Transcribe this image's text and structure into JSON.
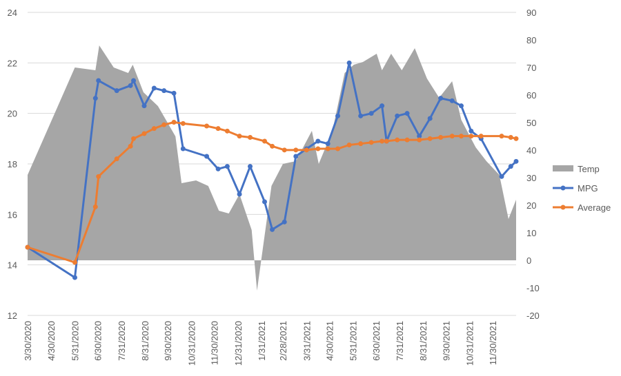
{
  "chart_data": {
    "type": "line",
    "title": "",
    "xlabel": "",
    "ylabel": "",
    "y2label": "",
    "x_tick_labels": [
      "3/30/2020",
      "4/30/2020",
      "5/31/2020",
      "6/30/2020",
      "7/31/2020",
      "8/31/2020",
      "9/30/2020",
      "10/31/2020",
      "11/30/2020",
      "12/31/2020",
      "1/31/2021",
      "2/28/2021",
      "3/31/2021",
      "4/30/2021",
      "5/31/2021",
      "6/30/2021",
      "7/31/2021",
      "8/31/2021",
      "9/30/2021",
      "10/31/2021",
      "11/30/2021"
    ],
    "xlim": [
      "2020-03-30",
      "2021-12-31"
    ],
    "ylim": [
      12,
      24
    ],
    "y_ticks": [
      12,
      14,
      16,
      18,
      20,
      22,
      24
    ],
    "y2lim": [
      -20,
      90
    ],
    "y2_ticks": [
      -20,
      -10,
      0,
      10,
      20,
      30,
      40,
      50,
      60,
      70,
      80,
      90
    ],
    "legend_position": "right",
    "grid": true,
    "series": [
      {
        "name": "Temp",
        "kind": "area",
        "axis": "secondary",
        "color": "#a6a6a6",
        "points": [
          [
            "2020-03-30",
            31
          ],
          [
            "2020-05-31",
            70
          ],
          [
            "2020-06-27",
            69
          ],
          [
            "2020-07-02",
            78
          ],
          [
            "2020-07-21",
            70
          ],
          [
            "2020-08-09",
            68
          ],
          [
            "2020-08-15",
            71
          ],
          [
            "2020-08-29",
            61
          ],
          [
            "2020-09-17",
            56
          ],
          [
            "2020-10-10",
            45
          ],
          [
            "2020-10-18",
            28
          ],
          [
            "2020-11-06",
            29
          ],
          [
            "2020-11-22",
            27
          ],
          [
            "2020-12-06",
            18
          ],
          [
            "2020-12-19",
            17
          ],
          [
            "2021-01-02",
            24
          ],
          [
            "2021-01-18",
            11
          ],
          [
            "2021-01-25",
            -11
          ],
          [
            "2021-02-13",
            27
          ],
          [
            "2021-02-28",
            35
          ],
          [
            "2021-03-17",
            36
          ],
          [
            "2021-04-07",
            47
          ],
          [
            "2021-04-16",
            35
          ],
          [
            "2021-05-04",
            47
          ],
          [
            "2021-05-20",
            68
          ],
          [
            "2021-06-01",
            71
          ],
          [
            "2021-06-13",
            72
          ],
          [
            "2021-07-01",
            75
          ],
          [
            "2021-07-08",
            69
          ],
          [
            "2021-07-20",
            75
          ],
          [
            "2021-08-03",
            69
          ],
          [
            "2021-08-20",
            77
          ],
          [
            "2021-09-05",
            66
          ],
          [
            "2021-09-21",
            59
          ],
          [
            "2021-10-08",
            65
          ],
          [
            "2021-10-20",
            51
          ],
          [
            "2021-11-08",
            41
          ],
          [
            "2021-11-22",
            36
          ],
          [
            "2021-12-09",
            31
          ],
          [
            "2021-12-21",
            15
          ],
          [
            "2021-12-31",
            22
          ]
        ]
      },
      {
        "name": "MPG",
        "kind": "line",
        "axis": "primary",
        "color": "#4472c4",
        "points": [
          [
            "2020-03-30",
            14.7
          ],
          [
            "2020-05-31",
            13.5
          ],
          [
            "2020-06-27",
            20.6
          ],
          [
            "2020-07-01",
            21.3
          ],
          [
            "2020-07-25",
            20.9
          ],
          [
            "2020-08-12",
            21.1
          ],
          [
            "2020-08-16",
            21.3
          ],
          [
            "2020-08-30",
            20.3
          ],
          [
            "2020-09-12",
            21.0
          ],
          [
            "2020-09-25",
            20.9
          ],
          [
            "2020-10-08",
            20.8
          ],
          [
            "2020-10-20",
            18.6
          ],
          [
            "2020-11-20",
            18.3
          ],
          [
            "2020-12-05",
            17.8
          ],
          [
            "2020-12-17",
            17.9
          ],
          [
            "2021-01-02",
            16.8
          ],
          [
            "2021-01-16",
            17.9
          ],
          [
            "2021-02-04",
            16.5
          ],
          [
            "2021-02-14",
            15.4
          ],
          [
            "2021-03-02",
            15.7
          ],
          [
            "2021-03-17",
            18.3
          ],
          [
            "2021-03-31",
            18.6
          ],
          [
            "2021-04-15",
            18.9
          ],
          [
            "2021-04-28",
            18.8
          ],
          [
            "2021-05-11",
            19.9
          ],
          [
            "2021-05-26",
            22.0
          ],
          [
            "2021-06-10",
            19.9
          ],
          [
            "2021-06-24",
            20.0
          ],
          [
            "2021-07-08",
            20.3
          ],
          [
            "2021-07-14",
            18.9
          ],
          [
            "2021-07-28",
            19.9
          ],
          [
            "2021-08-10",
            20.0
          ],
          [
            "2021-08-26",
            19.1
          ],
          [
            "2021-09-09",
            19.8
          ],
          [
            "2021-09-23",
            20.6
          ],
          [
            "2021-10-08",
            20.5
          ],
          [
            "2021-10-20",
            20.3
          ],
          [
            "2021-11-02",
            19.3
          ],
          [
            "2021-11-15",
            19.0
          ],
          [
            "2021-12-12",
            17.5
          ],
          [
            "2021-12-24",
            17.9
          ],
          [
            "2021-12-31",
            18.1
          ]
        ]
      },
      {
        "name": "Average",
        "kind": "line",
        "axis": "primary",
        "color": "#ed7d31",
        "points": [
          [
            "2020-03-30",
            14.7
          ],
          [
            "2020-05-31",
            14.1
          ],
          [
            "2020-06-27",
            16.3
          ],
          [
            "2020-07-01",
            17.5
          ],
          [
            "2020-07-25",
            18.2
          ],
          [
            "2020-08-12",
            18.7
          ],
          [
            "2020-08-16",
            19.0
          ],
          [
            "2020-08-30",
            19.2
          ],
          [
            "2020-09-12",
            19.4
          ],
          [
            "2020-09-25",
            19.55
          ],
          [
            "2020-10-08",
            19.65
          ],
          [
            "2020-10-20",
            19.6
          ],
          [
            "2020-11-20",
            19.5
          ],
          [
            "2020-12-05",
            19.4
          ],
          [
            "2020-12-17",
            19.3
          ],
          [
            "2021-01-02",
            19.1
          ],
          [
            "2021-01-16",
            19.05
          ],
          [
            "2021-02-04",
            18.9
          ],
          [
            "2021-02-14",
            18.7
          ],
          [
            "2021-03-02",
            18.55
          ],
          [
            "2021-03-17",
            18.55
          ],
          [
            "2021-03-31",
            18.55
          ],
          [
            "2021-04-15",
            18.6
          ],
          [
            "2021-04-28",
            18.6
          ],
          [
            "2021-05-11",
            18.6
          ],
          [
            "2021-05-26",
            18.75
          ],
          [
            "2021-06-10",
            18.8
          ],
          [
            "2021-06-24",
            18.85
          ],
          [
            "2021-07-08",
            18.9
          ],
          [
            "2021-07-14",
            18.9
          ],
          [
            "2021-07-28",
            18.95
          ],
          [
            "2021-08-10",
            18.95
          ],
          [
            "2021-08-26",
            18.95
          ],
          [
            "2021-09-09",
            19.0
          ],
          [
            "2021-09-23",
            19.05
          ],
          [
            "2021-10-08",
            19.1
          ],
          [
            "2021-10-20",
            19.1
          ],
          [
            "2021-11-02",
            19.1
          ],
          [
            "2021-11-15",
            19.1
          ],
          [
            "2021-12-12",
            19.1
          ],
          [
            "2021-12-24",
            19.05
          ],
          [
            "2021-12-31",
            19.0
          ]
        ]
      }
    ]
  }
}
